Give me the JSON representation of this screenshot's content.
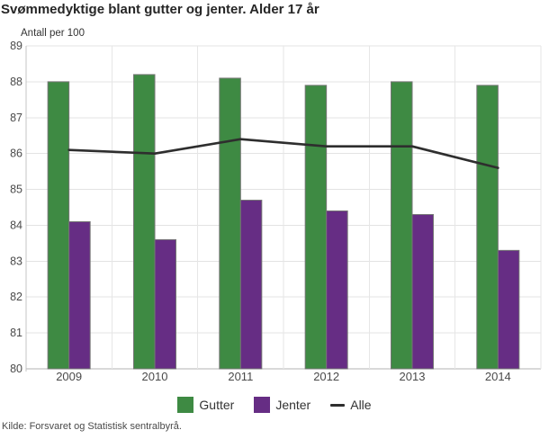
{
  "chart_data": {
    "type": "bar",
    "title": "Svømmedyktige blant gutter og jenter. Alder 17 år",
    "ylabel": "Antall per 100",
    "xlabel": "",
    "ylim": [
      80,
      89
    ],
    "ytick_step": 1,
    "grid": true,
    "legend_position": "bottom",
    "categories": [
      "2009",
      "2010",
      "2011",
      "2012",
      "2013",
      "2014"
    ],
    "series": [
      {
        "name": "Gutter",
        "type": "bar",
        "color": "#3e8a43",
        "values": [
          88.0,
          88.2,
          88.1,
          87.9,
          88.0,
          87.9
        ]
      },
      {
        "name": "Jenter",
        "type": "bar",
        "color": "#662d84",
        "values": [
          84.1,
          83.6,
          84.7,
          84.4,
          84.3,
          83.3
        ]
      },
      {
        "name": "Alle",
        "type": "line",
        "color": "#2e2e2e",
        "values": [
          86.1,
          86.0,
          86.4,
          86.2,
          86.2,
          85.6
        ]
      }
    ]
  },
  "source_note": "Kilde: Forsvaret og Statistisk sentralbyrå."
}
